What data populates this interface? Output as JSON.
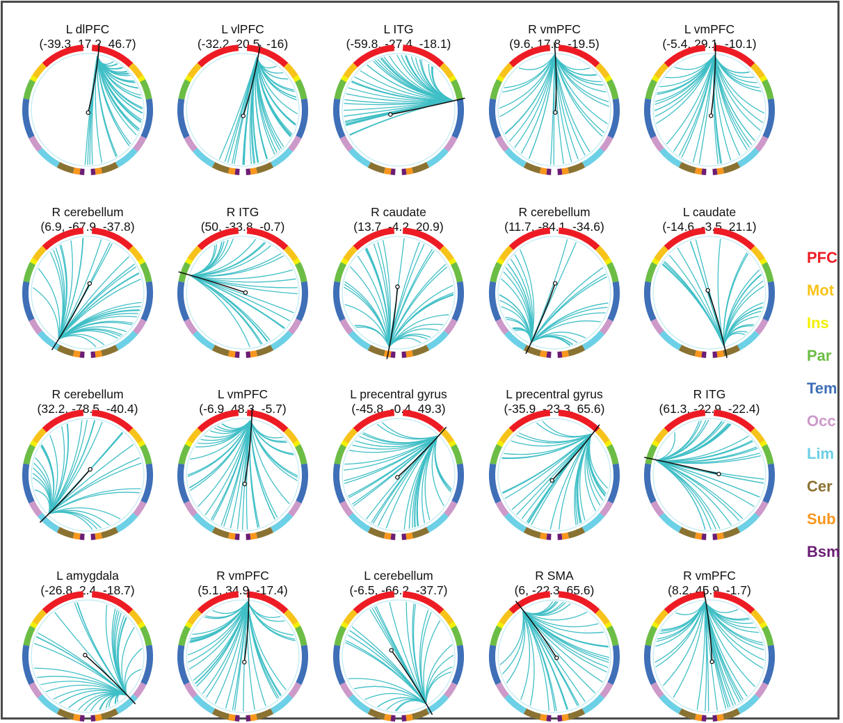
{
  "colors": {
    "ring_order_right": [
      "PFC",
      "Mot",
      "Ins",
      "Par",
      "Tem",
      "Occ",
      "Lim",
      "Cer",
      "Sub",
      "Bsm"
    ],
    "PFC": "#ed1c24",
    "Mot": "#f7c31b",
    "Ins": "#f2f000",
    "Par": "#6cbd45",
    "Tem": "#3f6fb7",
    "Occ": "#cc99c9",
    "Lim": "#6cd0e6",
    "Cer": "#8a7232",
    "Sub": "#f8961d",
    "Bsm": "#6b1d74",
    "connection": "#3fbfc6",
    "seed": "#111111"
  },
  "legend": {
    "items": [
      {
        "label": "PFC",
        "color": "#ed1c24"
      },
      {
        "label": "Mot",
        "color": "#f7c31b"
      },
      {
        "label": "Ins",
        "color": "#f2f000"
      },
      {
        "label": "Par",
        "color": "#6cbd45"
      },
      {
        "label": "Tem",
        "color": "#3f6fb7"
      },
      {
        "label": "Occ",
        "color": "#cc99c9"
      },
      {
        "label": "Lim",
        "color": "#6cd0e6"
      },
      {
        "label": "Cer",
        "color": "#8a7232"
      },
      {
        "label": "Sub",
        "color": "#f8961d"
      },
      {
        "label": "Bsm",
        "color": "#6b1d74"
      }
    ]
  },
  "panels": [
    {
      "name": "L dlPFC",
      "coords": "(-39.3, 17.2, 46.7)",
      "seed_angle": 10,
      "targets": 42,
      "spread": [
        10,
        175
      ]
    },
    {
      "name": "L vlPFC",
      "coords": "(-32.2, 20.5, -16)",
      "seed_angle": 15,
      "targets": 38,
      "spread": [
        20,
        200
      ]
    },
    {
      "name": "L ITG",
      "coords": "(-59.8, -27.4, -18.1)",
      "seed_angle": 80,
      "targets": 40,
      "spread": [
        150,
        320
      ]
    },
    {
      "name": "R vmPFC",
      "coords": "(9.6, 17.8, -19.5)",
      "seed_angle": 0,
      "targets": 30,
      "spread": [
        40,
        320
      ]
    },
    {
      "name": "L vmPFC",
      "coords": "(-5.4, 29.1, -10.1)",
      "seed_angle": 5,
      "targets": 36,
      "spread": [
        30,
        330
      ]
    },
    {
      "name": "R cerebellum",
      "coords": "(6.9, -67.9, -37.8)",
      "seed_angle": 212,
      "targets": 34,
      "spread": [
        60,
        320
      ]
    },
    {
      "name": "R ITG",
      "coords": "(50, -33.8, -0.7)",
      "seed_angle": 288,
      "targets": 30,
      "spread": [
        30,
        250
      ]
    },
    {
      "name": "R caudate",
      "coords": "(13.7, -4.2, 20.9)",
      "seed_angle": 190,
      "targets": 32,
      "spread": [
        20,
        330
      ]
    },
    {
      "name": "R cerebellum",
      "coords": "(11.7, -84.1, -34.6)",
      "seed_angle": 205,
      "targets": 36,
      "spread": [
        20,
        330
      ]
    },
    {
      "name": "L caudate",
      "coords": "(-14.6, -3.5, 21.1)",
      "seed_angle": 165,
      "targets": 26,
      "spread": [
        120,
        340
      ]
    },
    {
      "name": "R cerebellum",
      "coords": "(32.2, -78.5, -40.4)",
      "seed_angle": 225,
      "targets": 30,
      "spread": [
        20,
        330
      ]
    },
    {
      "name": "L vmPFC",
      "coords": "(-6.9, 48.3, -5.7)",
      "seed_angle": 8,
      "targets": 40,
      "spread": [
        20,
        340
      ]
    },
    {
      "name": "L precentral gyrus",
      "coords": "(-45.8, -0.4, 49.3)",
      "seed_angle": 45,
      "targets": 34,
      "spread": [
        60,
        300
      ]
    },
    {
      "name": "L precentral gyrus",
      "coords": "(-35.9, -23.3, 65.6)",
      "seed_angle": 42,
      "targets": 34,
      "spread": [
        60,
        310
      ]
    },
    {
      "name": "R ITG",
      "coords": "(61.3, -22.9, -22.4)",
      "seed_angle": 285,
      "targets": 34,
      "spread": [
        30,
        260
      ]
    },
    {
      "name": "L amygdala",
      "coords": "(-26.8, 2.4, -18.7)",
      "seed_angle": 135,
      "targets": 38,
      "spread": [
        10,
        330
      ]
    },
    {
      "name": "R vmPFC",
      "coords": "(5.1, 34.9, -17.4)",
      "seed_angle": 5,
      "targets": 36,
      "spread": [
        30,
        330
      ]
    },
    {
      "name": "L cerebellum",
      "coords": "(-6.5, -66.2, -37.7)",
      "seed_angle": 150,
      "targets": 30,
      "spread": [
        20,
        330
      ]
    },
    {
      "name": "R SMA",
      "coords": "(6, -22.3, 65.6)",
      "seed_angle": 325,
      "targets": 32,
      "spread": [
        20,
        300
      ]
    },
    {
      "name": "R vmPFC",
      "coords": "(8.2, 45.9, -1.7)",
      "seed_angle": 355,
      "targets": 36,
      "spread": [
        30,
        330
      ]
    }
  ]
}
